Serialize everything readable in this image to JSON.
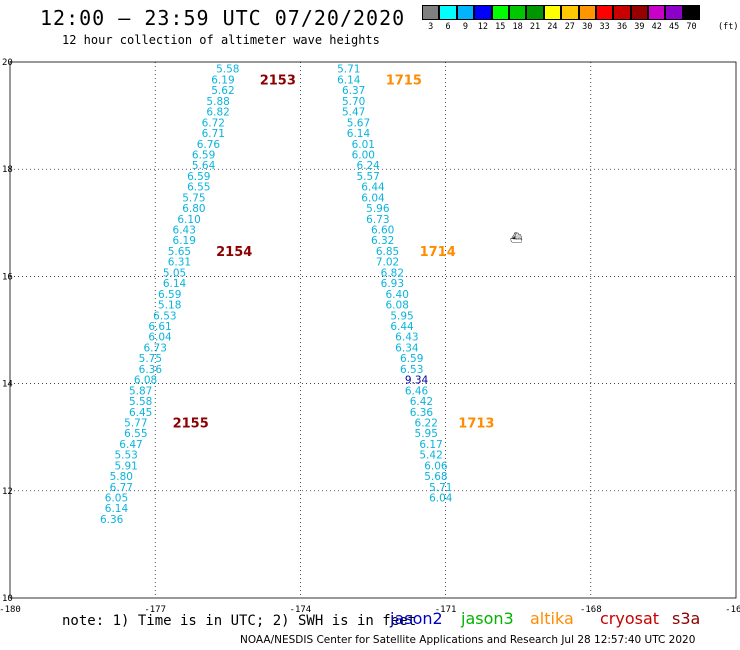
{
  "header": {
    "title": "12:00 — 23:59 UTC 07/20/2020",
    "subtitle": "12 hour collection of altimeter wave heights"
  },
  "colorbar": {
    "labels": [
      "3",
      "6",
      "9",
      "12",
      "15",
      "18",
      "21",
      "24",
      "27",
      "30",
      "33",
      "36",
      "39",
      "42",
      "45",
      "70"
    ],
    "colors": [
      "#808080",
      "#00ffff",
      "#00b4ff",
      "#0000ff",
      "#00ff00",
      "#00c800",
      "#009600",
      "#ffff00",
      "#ffc800",
      "#ff9600",
      "#ff0000",
      "#c80000",
      "#960000",
      "#c800c8",
      "#8c00c8",
      "#000000"
    ],
    "unit": "(ft)"
  },
  "map": {
    "lon_range": [
      -180,
      -165
    ],
    "lat_range": [
      10,
      20
    ],
    "x_ticks": [
      "-180",
      "-177",
      "-174",
      "-171",
      "-168",
      "-165"
    ],
    "y_ticks": [
      "20",
      "18",
      "16",
      "14",
      "12",
      "10"
    ],
    "colors": {
      "jason3": "#0ab4dc",
      "jason3_dark": "#0000a0",
      "altika": "#ff8c00",
      "cryosat": "#8b0000"
    }
  },
  "tracks": [
    {
      "pass_label": "2153",
      "values": [
        "5.58",
        "6.19",
        "5.62",
        "5.88",
        "6.82",
        "6.72",
        "6.71",
        "6.76",
        "6.59",
        "5.64",
        "6.59",
        "6.55",
        "5.75",
        "6.80",
        "6.10",
        "6.43"
      ],
      "lon": [
        -175.5,
        -175.6,
        -175.6,
        -175.7,
        -175.7,
        -175.8,
        -175.8,
        -175.9,
        -176.0,
        -176.0,
        -176.1,
        -176.1,
        -176.2,
        -176.2,
        -176.3,
        -176.4
      ],
      "lat": [
        19.8,
        19.6,
        19.4,
        19.2,
        19.0,
        18.8,
        18.6,
        18.4,
        18.2,
        18.0,
        17.8,
        17.6,
        17.4,
        17.2,
        17.0,
        16.8
      ]
    },
    {
      "pass_label": "2154",
      "values": [
        "6.19",
        "5.65",
        "6.31",
        "5.05",
        "6.14",
        "6.59",
        "5.18",
        "6.53",
        "6.61",
        "6.04",
        "6.73",
        "5.75",
        "6.36",
        "6.08",
        "5.87",
        "5.58"
      ],
      "lon": [
        -176.4,
        -176.5,
        -176.5,
        -176.6,
        -176.6,
        -176.7,
        -176.7,
        -176.8,
        -176.9,
        -176.9,
        -177.0,
        -177.1,
        -177.1,
        -177.2,
        -177.3,
        -177.3
      ],
      "lat": [
        16.6,
        16.4,
        16.2,
        16.0,
        15.8,
        15.6,
        15.4,
        15.2,
        15.0,
        14.8,
        14.6,
        14.4,
        14.2,
        14.0,
        13.8,
        13.6
      ]
    },
    {
      "pass_label": "2155",
      "values": [
        "6.45",
        "5.77",
        "6.55",
        "6.47",
        "5.53",
        "5.91",
        "5.80",
        "6.77",
        "6.05",
        "6.14",
        "6.36"
      ],
      "lon": [
        -177.3,
        -177.4,
        -177.4,
        -177.5,
        -177.6,
        -177.6,
        -177.7,
        -177.7,
        -177.8,
        -177.8,
        -177.9
      ],
      "lat": [
        13.4,
        13.2,
        13.0,
        12.8,
        12.6,
        12.4,
        12.2,
        12.0,
        11.8,
        11.6,
        11.4
      ]
    },
    {
      "pass_label": "1715",
      "values": [
        "5.71",
        "6.14",
        "6.37",
        "5.70",
        "5.47",
        "5.67",
        "6.14",
        "6.01",
        "6.00",
        "6.24",
        "5.57",
        "6.44",
        "6.04",
        "5.96",
        "6.73",
        "6.60"
      ],
      "lon": [
        -173.0,
        -173.0,
        -172.9,
        -172.9,
        -172.9,
        -172.8,
        -172.8,
        -172.7,
        -172.7,
        -172.6,
        -172.6,
        -172.5,
        -172.5,
        -172.4,
        -172.4,
        -172.3
      ],
      "lat": [
        19.8,
        19.6,
        19.4,
        19.2,
        19.0,
        18.8,
        18.6,
        18.4,
        18.2,
        18.0,
        17.8,
        17.6,
        17.4,
        17.2,
        17.0,
        16.8
      ]
    },
    {
      "pass_label": "1714",
      "values": [
        "6.32",
        "6.85",
        "7.02",
        "6.82",
        "6.93",
        "6.40",
        "6.08",
        "5.95",
        "6.44",
        "6.43",
        "6.34",
        "6.59",
        "6.53",
        "9.34",
        "6.46",
        "6.42"
      ],
      "lon": [
        -172.3,
        -172.2,
        -172.2,
        -172.1,
        -172.1,
        -172.0,
        -172.0,
        -171.9,
        -171.9,
        -171.8,
        -171.8,
        -171.7,
        -171.7,
        -171.6,
        -171.6,
        -171.5
      ],
      "lat": [
        16.6,
        16.4,
        16.2,
        16.0,
        15.8,
        15.6,
        15.4,
        15.2,
        15.0,
        14.8,
        14.6,
        14.4,
        14.2,
        14.0,
        13.8,
        13.6
      ]
    },
    {
      "pass_label": "1713",
      "values": [
        "6.36",
        "6.22",
        "5.95",
        "6.17",
        "5.42",
        "6.06",
        "5.68",
        "5.71",
        "6.04"
      ],
      "lon": [
        -171.5,
        -171.4,
        -171.4,
        -171.3,
        -171.3,
        -171.2,
        -171.2,
        -171.1,
        -171.1
      ],
      "lat": [
        13.4,
        13.2,
        13.0,
        12.8,
        12.6,
        12.4,
        12.2,
        12.0,
        11.8
      ]
    }
  ],
  "footer": {
    "note": "note: 1) Time is in UTC; 2) SWH is in feet",
    "satellites": [
      "jason2",
      "jason3",
      "altika",
      "cryosat",
      "s3a"
    ],
    "credit": "NOAA/NESDIS Center for Satellite Applications and Research   Jul 28 12:57:40 UTC 2020"
  }
}
